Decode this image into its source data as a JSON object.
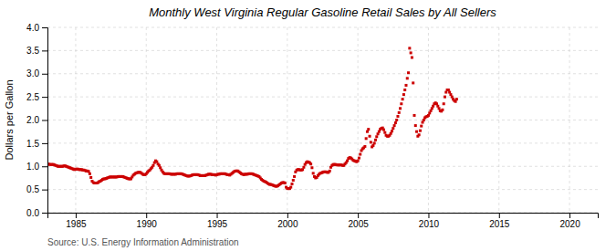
{
  "chart_data": {
    "type": "scatter",
    "title": "Monthly West Virginia Regular Gasoline Retail Sales by All Sellers",
    "ylabel": "Dollars per Gallon",
    "annotations": [
      "Source: U.S. Energy Information Administration"
    ],
    "color": "#cc0000",
    "marker": "square",
    "grid": true,
    "xlim": [
      1983.0,
      2022.0
    ],
    "ylim": [
      0.0,
      4.0
    ],
    "xticks": [
      1985,
      1990,
      1995,
      2000,
      2005,
      2010,
      2015,
      2020
    ],
    "yticks": [
      {
        "value": 0.0,
        "label": "0.0"
      },
      0.5,
      {
        "value": 1.0,
        "label": "1.0"
      },
      1.5,
      {
        "value": 2.0,
        "label": "2.0"
      },
      2.5,
      {
        "value": 3.0,
        "label": "3.0"
      },
      3.5,
      {
        "value": 4.0,
        "label": "4.0"
      }
    ],
    "x": [
      1983.083,
      1983.167,
      1983.25,
      1983.333,
      1983.417,
      1983.5,
      1983.583,
      1983.667,
      1983.75,
      1983.833,
      1983.917,
      1984.0,
      1984.083,
      1984.167,
      1984.25,
      1984.333,
      1984.417,
      1984.5,
      1984.583,
      1984.667,
      1984.75,
      1984.833,
      1984.917,
      1985.0,
      1985.083,
      1985.167,
      1985.25,
      1985.333,
      1985.417,
      1985.5,
      1985.583,
      1985.667,
      1985.75,
      1985.833,
      1985.917,
      1986.0,
      1986.083,
      1986.167,
      1986.25,
      1986.333,
      1986.417,
      1986.5,
      1986.583,
      1986.667,
      1986.75,
      1986.833,
      1986.917,
      1987.0,
      1987.083,
      1987.167,
      1987.25,
      1987.333,
      1987.417,
      1987.5,
      1987.583,
      1987.667,
      1987.75,
      1987.833,
      1987.917,
      1988.0,
      1988.083,
      1988.167,
      1988.25,
      1988.333,
      1988.417,
      1988.5,
      1988.583,
      1988.667,
      1988.75,
      1988.833,
      1988.917,
      1989.0,
      1989.083,
      1989.167,
      1989.25,
      1989.333,
      1989.417,
      1989.5,
      1989.583,
      1989.667,
      1989.75,
      1989.833,
      1989.917,
      1990.0,
      1990.083,
      1990.167,
      1990.25,
      1990.333,
      1990.417,
      1990.5,
      1990.583,
      1990.667,
      1990.75,
      1990.833,
      1990.917,
      1991.0,
      1991.083,
      1991.167,
      1991.25,
      1991.333,
      1991.417,
      1991.5,
      1991.583,
      1991.667,
      1991.75,
      1991.833,
      1991.917,
      1992.0,
      1992.083,
      1992.167,
      1992.25,
      1992.333,
      1992.417,
      1992.5,
      1992.583,
      1992.667,
      1992.75,
      1992.833,
      1992.917,
      1993.0,
      1993.083,
      1993.167,
      1993.25,
      1993.333,
      1993.417,
      1993.5,
      1993.583,
      1993.667,
      1993.75,
      1993.833,
      1993.917,
      1994.0,
      1994.083,
      1994.167,
      1994.25,
      1994.333,
      1994.417,
      1994.5,
      1994.583,
      1994.667,
      1994.75,
      1994.833,
      1994.917,
      1995.0,
      1995.083,
      1995.167,
      1995.25,
      1995.333,
      1995.417,
      1995.5,
      1995.583,
      1995.667,
      1995.75,
      1995.833,
      1995.917,
      1996.0,
      1996.083,
      1996.167,
      1996.25,
      1996.333,
      1996.417,
      1996.5,
      1996.583,
      1996.667,
      1996.75,
      1996.833,
      1996.917,
      1997.0,
      1997.083,
      1997.167,
      1997.25,
      1997.333,
      1997.417,
      1997.5,
      1997.583,
      1997.667,
      1997.75,
      1997.833,
      1997.917,
      1998.0,
      1998.083,
      1998.167,
      1998.25,
      1998.333,
      1998.417,
      1998.5,
      1998.583,
      1998.667,
      1998.75,
      1998.833,
      1998.917,
      1999.0,
      1999.083,
      1999.167,
      1999.25,
      1999.333,
      1999.417,
      1999.5,
      1999.583,
      1999.667,
      1999.75,
      1999.833,
      1999.917,
      2000.0,
      2000.083,
      2000.167,
      2000.25,
      2000.333,
      2000.417,
      2000.5,
      2000.583,
      2000.667,
      2000.75,
      2000.833,
      2000.917,
      2001.0,
      2001.083,
      2001.167,
      2001.25,
      2001.333,
      2001.417,
      2001.5,
      2001.583,
      2001.667,
      2001.75,
      2001.833,
      2001.917,
      2002.0,
      2002.083,
      2002.167,
      2002.25,
      2002.333,
      2002.417,
      2002.5,
      2002.583,
      2002.667,
      2002.75,
      2002.833,
      2002.917,
      2003.0,
      2003.083,
      2003.167,
      2003.25,
      2003.333,
      2003.417,
      2003.5,
      2003.583,
      2003.667,
      2003.75,
      2003.833,
      2003.917,
      2004.0,
      2004.083,
      2004.167,
      2004.25,
      2004.333,
      2004.417,
      2004.5,
      2004.583,
      2004.667,
      2004.75,
      2004.833,
      2004.917,
      2005.0,
      2005.083,
      2005.167,
      2005.25,
      2005.333,
      2005.417,
      2005.5,
      2005.583,
      2005.667,
      2005.75,
      2005.833,
      2005.917,
      2006.0,
      2006.083,
      2006.167,
      2006.25,
      2006.333,
      2006.417,
      2006.5,
      2006.583,
      2006.667,
      2006.75,
      2006.833,
      2006.917,
      2007.0,
      2007.083,
      2007.167,
      2007.25,
      2007.333,
      2007.417,
      2007.5,
      2007.583,
      2007.667,
      2007.75,
      2007.833,
      2007.917,
      2008.0,
      2008.083,
      2008.167,
      2008.25,
      2008.333,
      2008.417,
      2008.5,
      2008.583,
      2008.667,
      2008.75,
      2008.833,
      2008.917,
      2009.0,
      2009.083,
      2009.167,
      2009.25,
      2009.333,
      2009.417,
      2009.5,
      2009.583,
      2009.667,
      2009.75,
      2009.833,
      2009.917,
      2010.0,
      2010.083,
      2010.167,
      2010.25,
      2010.333,
      2010.417,
      2010.5,
      2010.583,
      2010.667,
      2010.75,
      2010.833,
      2010.917,
      2011.0,
      2011.083,
      2011.167,
      2011.25,
      2011.333,
      2011.417,
      2011.5,
      2011.583,
      2011.667,
      2011.75,
      2011.833,
      2011.917,
      2012.0
    ],
    "values": [
      1.05,
      1.04,
      1.04,
      1.04,
      1.04,
      1.03,
      1.02,
      1.01,
      1.0,
      1.0,
      1.0,
      1.0,
      1.0,
      1.01,
      1.01,
      1.0,
      0.99,
      0.98,
      0.97,
      0.96,
      0.95,
      0.94,
      0.93,
      0.94,
      0.94,
      0.94,
      0.93,
      0.93,
      0.93,
      0.92,
      0.92,
      0.91,
      0.9,
      0.9,
      0.89,
      0.84,
      0.76,
      0.68,
      0.65,
      0.64,
      0.64,
      0.64,
      0.65,
      0.67,
      0.68,
      0.7,
      0.72,
      0.73,
      0.73,
      0.74,
      0.75,
      0.76,
      0.77,
      0.77,
      0.77,
      0.77,
      0.77,
      0.77,
      0.77,
      0.78,
      0.78,
      0.78,
      0.78,
      0.78,
      0.77,
      0.76,
      0.75,
      0.74,
      0.73,
      0.73,
      0.73,
      0.77,
      0.81,
      0.83,
      0.85,
      0.86,
      0.87,
      0.87,
      0.87,
      0.85,
      0.83,
      0.82,
      0.82,
      0.84,
      0.87,
      0.9,
      0.92,
      0.95,
      0.98,
      1.02,
      1.08,
      1.12,
      1.1,
      1.05,
      1.02,
      0.97,
      0.92,
      0.88,
      0.85,
      0.84,
      0.84,
      0.84,
      0.84,
      0.84,
      0.83,
      0.83,
      0.83,
      0.83,
      0.83,
      0.84,
      0.84,
      0.84,
      0.84,
      0.84,
      0.83,
      0.82,
      0.81,
      0.8,
      0.79,
      0.79,
      0.79,
      0.8,
      0.81,
      0.82,
      0.82,
      0.82,
      0.82,
      0.82,
      0.81,
      0.8,
      0.8,
      0.8,
      0.8,
      0.8,
      0.81,
      0.82,
      0.83,
      0.83,
      0.83,
      0.82,
      0.82,
      0.82,
      0.81,
      0.82,
      0.83,
      0.83,
      0.84,
      0.84,
      0.84,
      0.84,
      0.84,
      0.83,
      0.82,
      0.82,
      0.81,
      0.83,
      0.85,
      0.87,
      0.89,
      0.9,
      0.9,
      0.9,
      0.88,
      0.86,
      0.84,
      0.83,
      0.82,
      0.83,
      0.83,
      0.83,
      0.84,
      0.84,
      0.84,
      0.84,
      0.83,
      0.82,
      0.81,
      0.8,
      0.79,
      0.78,
      0.75,
      0.72,
      0.7,
      0.68,
      0.67,
      0.66,
      0.64,
      0.62,
      0.61,
      0.61,
      0.6,
      0.59,
      0.58,
      0.57,
      0.57,
      0.58,
      0.6,
      0.62,
      0.64,
      0.65,
      0.65,
      0.64,
      0.55,
      0.52,
      0.52,
      0.52,
      0.55,
      0.62,
      0.7,
      0.78,
      0.88,
      0.92,
      0.93,
      0.93,
      0.92,
      0.92,
      0.93,
      0.98,
      1.04,
      1.08,
      1.1,
      1.09,
      1.08,
      1.05,
      0.97,
      0.85,
      0.78,
      0.75,
      0.76,
      0.8,
      0.83,
      0.85,
      0.86,
      0.87,
      0.88,
      0.88,
      0.88,
      0.87,
      0.87,
      0.9,
      0.98,
      1.02,
      1.04,
      1.04,
      1.04,
      1.03,
      1.03,
      1.03,
      1.03,
      1.03,
      1.02,
      1.02,
      1.05,
      1.08,
      1.12,
      1.17,
      1.19,
      1.18,
      1.16,
      1.13,
      1.12,
      1.11,
      1.1,
      1.12,
      1.18,
      1.26,
      1.34,
      1.38,
      1.4,
      1.43,
      1.6,
      1.75,
      1.8,
      1.65,
      1.52,
      1.42,
      1.45,
      1.5,
      1.57,
      1.64,
      1.7,
      1.75,
      1.8,
      1.82,
      1.83,
      1.79,
      1.73,
      1.67,
      1.65,
      1.65,
      1.67,
      1.71,
      1.76,
      1.82,
      1.88,
      1.94,
      2.0,
      2.08,
      2.16,
      2.25,
      2.35,
      2.45,
      2.55,
      2.65,
      2.75,
      2.9,
      3.02,
      3.55,
      3.45,
      3.35,
      2.8,
      2.1,
      1.88,
      1.75,
      1.65,
      1.68,
      1.77,
      1.87,
      1.95,
      2.0,
      2.05,
      2.07,
      2.08,
      2.1,
      2.15,
      2.2,
      2.25,
      2.3,
      2.35,
      2.37,
      2.35,
      2.3,
      2.25,
      2.2,
      2.19,
      2.22,
      2.35,
      2.5,
      2.6,
      2.65,
      2.65,
      2.6,
      2.55,
      2.5,
      2.45,
      2.42,
      2.4,
      2.45
    ]
  }
}
